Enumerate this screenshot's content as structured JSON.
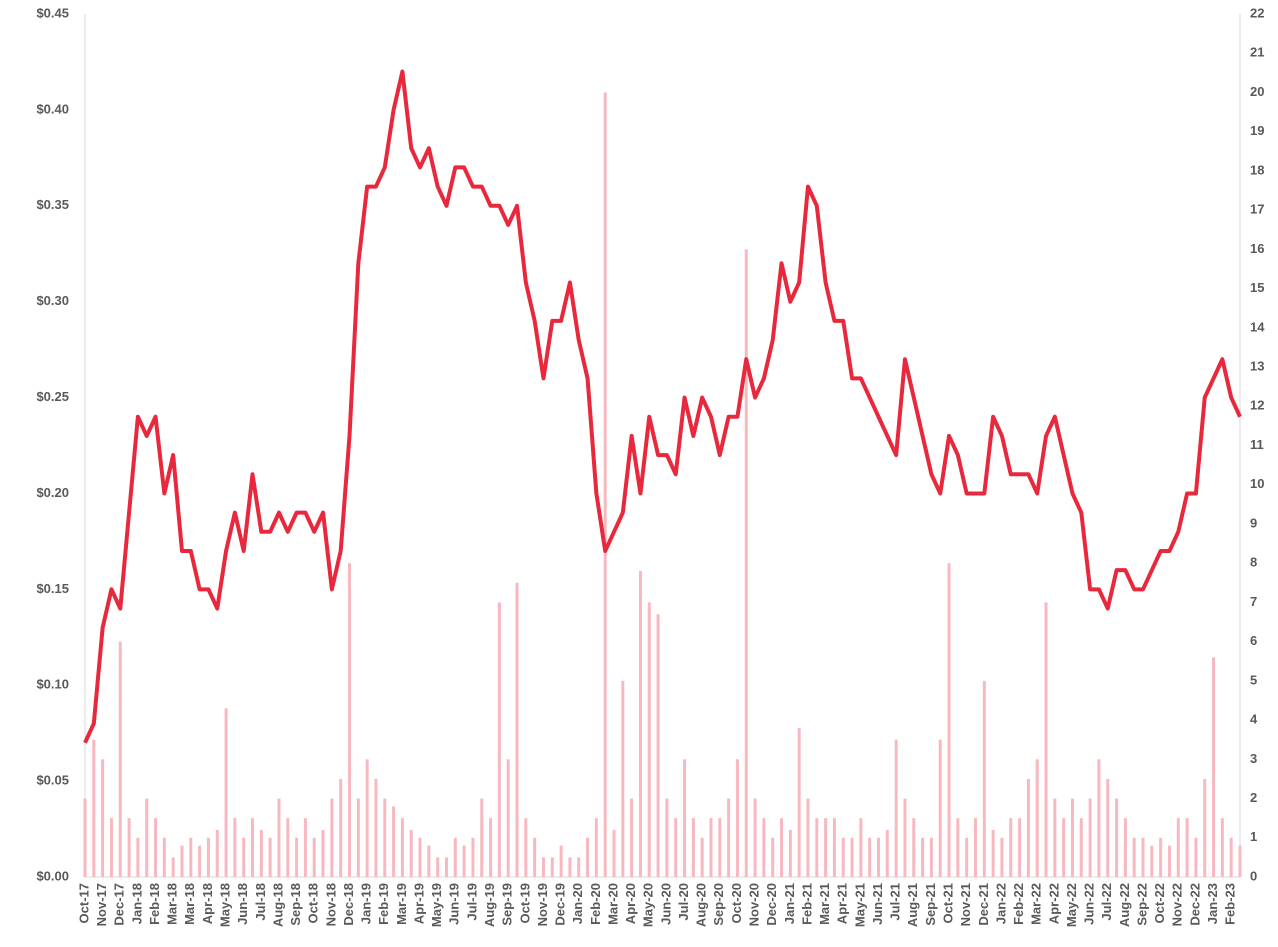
{
  "chart_data": {
    "type": "line",
    "categories": [
      "Oct-17",
      null,
      "Nov-17",
      null,
      "Dec-17",
      null,
      "Jan-18",
      null,
      "Feb-18",
      null,
      "Mar-18",
      null,
      "Mar-18",
      null,
      "Apr-18",
      null,
      "May-18",
      null,
      "Jun-18",
      null,
      "Jul-18",
      null,
      "Aug-18",
      null,
      "Sep-18",
      null,
      "Oct-18",
      null,
      "Nov-18",
      null,
      "Dec-18",
      null,
      "Jan-19",
      null,
      "Feb-19",
      null,
      "Mar-19",
      null,
      "Apr-19",
      null,
      "May-19",
      null,
      "Jun-19",
      null,
      "Jul-19",
      null,
      "Aug-19",
      null,
      "Sep-19",
      null,
      "Oct-19",
      null,
      "Nov-19",
      null,
      "Dec-19",
      null,
      "Jan-20",
      null,
      "Feb-20",
      null,
      "Mar-20",
      null,
      "Apr-20",
      null,
      "May-20",
      null,
      "Jun-20",
      null,
      "Jul-20",
      null,
      "Aug-20",
      null,
      "Sep-20",
      null,
      "Oct-20",
      null,
      "Nov-20",
      null,
      "Dec-20",
      null,
      "Jan-21",
      null,
      "Feb-21",
      null,
      "Mar-21",
      null,
      "Apr-21",
      null,
      "May-21",
      null,
      "Jun-21",
      null,
      "Jul-21",
      null,
      "Aug-21",
      null,
      "Sep-21",
      null,
      "Oct-21",
      null,
      "Nov-21",
      null,
      "Dec-21",
      null,
      "Jan-22",
      null,
      "Feb-22",
      null,
      "Mar-22",
      null,
      "Apr-22",
      null,
      "May-22",
      null,
      "Jun-22",
      null,
      "Jul-22",
      null,
      "Aug-22",
      null,
      "Sep-22",
      null,
      "Oct-22",
      null,
      "Nov-22",
      null,
      "Dec-22",
      null,
      "Jan-23",
      null,
      "Feb-23",
      null
    ],
    "series": [
      {
        "color": "#e8283c",
        "values": [
          0.07,
          0.08,
          0.13,
          0.15,
          0.14,
          0.19,
          0.24,
          0.23,
          0.24,
          0.2,
          0.22,
          0.17,
          0.17,
          0.15,
          0.15,
          0.14,
          0.17,
          0.19,
          0.17,
          0.21,
          0.18,
          0.18,
          0.19,
          0.18,
          0.19,
          0.19,
          0.18,
          0.19,
          0.15,
          0.17,
          0.23,
          0.32,
          0.36,
          0.36,
          0.37,
          0.4,
          0.42,
          0.38,
          0.37,
          0.38,
          0.36,
          0.35,
          0.37,
          0.37,
          0.36,
          0.36,
          0.35,
          0.35,
          0.34,
          0.35,
          0.31,
          0.29,
          0.26,
          0.29,
          0.29,
          0.31,
          0.28,
          0.26,
          0.2,
          0.17,
          0.18,
          0.19,
          0.23,
          0.2,
          0.24,
          0.22,
          0.22,
          0.21,
          0.25,
          0.23,
          0.25,
          0.24,
          0.22,
          0.24,
          0.24,
          0.27,
          0.25,
          0.26,
          0.28,
          0.32,
          0.3,
          0.31,
          0.36,
          0.35,
          0.31,
          0.29,
          0.29,
          0.26,
          0.26,
          0.25,
          0.24,
          0.23,
          0.22,
          0.27,
          0.25,
          0.23,
          0.21,
          0.2,
          0.23,
          0.22,
          0.2,
          0.2,
          0.2,
          0.24,
          0.23,
          0.21,
          0.21,
          0.21,
          0.2,
          0.23,
          0.24,
          0.22,
          0.2,
          0.19,
          0.15,
          0.15,
          0.14,
          0.16,
          0.16,
          0.15,
          0.15,
          0.16,
          0.17,
          0.17,
          0.18,
          0.2,
          0.2,
          0.25,
          0.26,
          0.27,
          0.25,
          0.24
        ]
      },
      {
        "type": "bar",
        "axis": "y2",
        "color": "#f7b9bf",
        "values": [
          2,
          3.5,
          3,
          1.5,
          6,
          1.5,
          1,
          2,
          1.5,
          1,
          0.5,
          0.8,
          1,
          0.8,
          1,
          1.2,
          4.3,
          1.5,
          1,
          1.5,
          1.2,
          1,
          2,
          1.5,
          1,
          1.5,
          1,
          1.2,
          2,
          2.5,
          8,
          2,
          3,
          2.5,
          2,
          1.8,
          1.5,
          1.2,
          1,
          0.8,
          0.5,
          0.5,
          1,
          0.8,
          1,
          2,
          1.5,
          7,
          3,
          7.5,
          1.5,
          1,
          0.5,
          0.5,
          0.8,
          0.5,
          0.5,
          1,
          1.5,
          20,
          1.2,
          5,
          2,
          7.8,
          7,
          6.7,
          2,
          1.5,
          3,
          1.5,
          1,
          1.5,
          1.5,
          2,
          3,
          16,
          2,
          1.5,
          1,
          1.5,
          1.2,
          3.8,
          2,
          1.5,
          1.5,
          1.5,
          1,
          1,
          1.5,
          1,
          1,
          1.2,
          3.5,
          2,
          1.5,
          1,
          1,
          3.5,
          8,
          1.5,
          1,
          1.5,
          5,
          1.2,
          1,
          1.5,
          1.5,
          2.5,
          3,
          7,
          2,
          1.5,
          2,
          1.5,
          2,
          3,
          2.5,
          2,
          1.5,
          1,
          1,
          0.8,
          1,
          0.8,
          1.5,
          1.5,
          1,
          2.5,
          5.6,
          1.5,
          1,
          0.8
        ]
      }
    ],
    "ylim": [
      0,
      0.45
    ],
    "yticks": [
      {
        "value": 0,
        "label": "$0.00"
      },
      {
        "value": 0.05,
        "label": "$0.05"
      },
      {
        "value": 0.1,
        "label": "$0.10"
      },
      {
        "value": 0.15,
        "label": "$0.15"
      },
      {
        "value": 0.2,
        "label": "$0.20"
      },
      {
        "value": 0.25,
        "label": "$0.25"
      },
      {
        "value": 0.3,
        "label": "$0.30"
      },
      {
        "value": 0.35,
        "label": "$0.35"
      },
      {
        "value": 0.4,
        "label": "$0.40"
      },
      {
        "value": 0.45,
        "label": "$0.45"
      }
    ],
    "y2lim": [
      0,
      22
    ],
    "y2ticks": [
      0,
      1,
      2,
      3,
      4,
      5,
      6,
      7,
      8,
      9,
      10,
      11,
      12,
      13,
      14,
      15,
      16,
      17,
      18,
      19,
      20,
      21,
      22
    ]
  }
}
